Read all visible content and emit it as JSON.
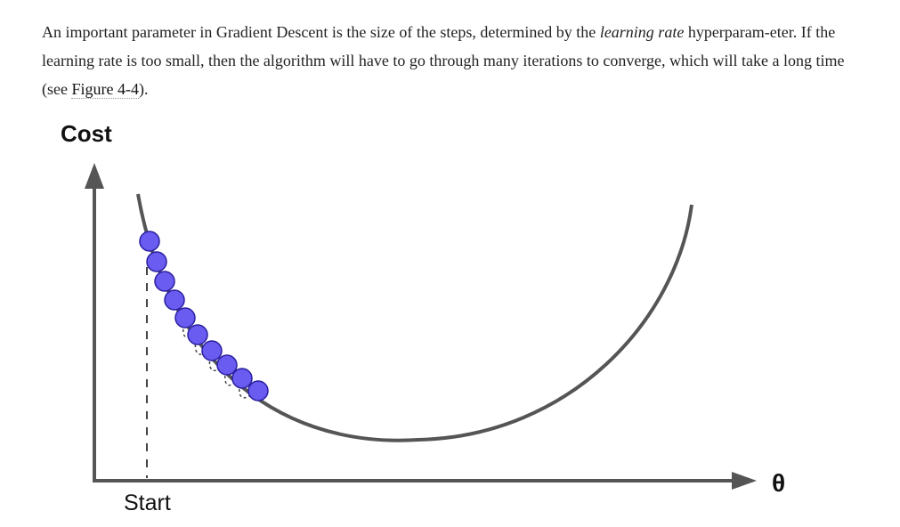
{
  "paragraph": {
    "part1": "An important parameter in Gradient Descent is the size of the steps, determined by the ",
    "emphasis": "learning rate",
    "part2": " hyperparam-eter. If the learning rate is too small, then the algorithm will have to go through many iterations to converge, which will take a long time (see ",
    "figure_ref": "Figure 4-4",
    "part3": ")."
  },
  "figure": {
    "ylabel": "Cost",
    "xlabel": "θ",
    "start_label": "Start",
    "colors": {
      "curve": "#555555",
      "axis": "#555555",
      "step_fill": "#6a5cf0",
      "step_stroke": "#2a1fa0"
    },
    "step_count": 9
  }
}
